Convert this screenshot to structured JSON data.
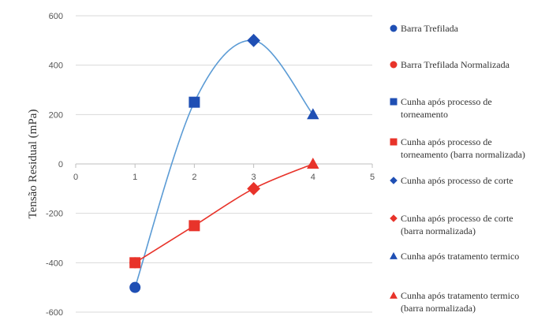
{
  "chart_data": {
    "type": "scatter",
    "title": "",
    "xlabel": "",
    "ylabel": "Tensão Residual (mPa)",
    "xlim": [
      0,
      5
    ],
    "ylim": [
      -600,
      600
    ],
    "x_ticks": [
      "0",
      "1",
      "2",
      "3",
      "4",
      "5"
    ],
    "y_ticks": [
      "-600",
      "-400",
      "-200",
      "0",
      "200",
      "400",
      "600"
    ],
    "grid": "horizontal",
    "legend_position": "right",
    "series": [
      {
        "name": "Barra Trefilada",
        "marker": "circle",
        "color": "#1f4fb4",
        "x": [
          1
        ],
        "y": [
          -500
        ]
      },
      {
        "name": "Barra Trefilada Normalizada",
        "marker": "circle",
        "color": "#e8332a",
        "x": [
          1
        ],
        "y": [
          -400
        ]
      },
      {
        "name": "Cunha após processo de torneamento",
        "marker": "square",
        "color": "#1f4fb4",
        "x": [
          2
        ],
        "y": [
          250
        ]
      },
      {
        "name": "Cunha após processo de torneamento (barra normalizada)",
        "marker": "square",
        "color": "#e8332a",
        "x": [
          1,
          2
        ],
        "y": [
          -400,
          -250
        ]
      },
      {
        "name": "Cunha após processo de corte",
        "marker": "diamond",
        "color": "#1f4fb4",
        "x": [
          3
        ],
        "y": [
          500
        ]
      },
      {
        "name": "Cunha após processo de corte (barra normalizada)",
        "marker": "diamond",
        "color": "#e8332a",
        "x": [
          3
        ],
        "y": [
          -100
        ]
      },
      {
        "name": "Cunha após tratamento termico",
        "marker": "triangle",
        "color": "#1f4fb4",
        "x": [
          4
        ],
        "y": [
          200
        ]
      },
      {
        "name": "Cunha após tratamento termico (barra normalizada)",
        "marker": "triangle",
        "color": "#e8332a",
        "x": [
          4
        ],
        "y": [
          0
        ]
      }
    ],
    "trend_lines": [
      {
        "color": "#5b9bd5",
        "x": [
          1,
          2,
          3,
          4
        ],
        "y": [
          -500,
          250,
          500,
          200
        ]
      },
      {
        "color": "#e8332a",
        "x": [
          1,
          2,
          3,
          4
        ],
        "y": [
          -400,
          -250,
          -100,
          0
        ]
      }
    ]
  },
  "legend": {
    "items": [
      {
        "lines": [
          "Barra Trefilada"
        ],
        "marker": "circle",
        "color": "#1f4fb4"
      },
      {
        "lines": [
          "Barra Trefilada Normalizada"
        ],
        "marker": "circle",
        "color": "#e8332a"
      },
      {
        "lines": [
          "Cunha após processo de",
          "torneamento"
        ],
        "marker": "square",
        "color": "#1f4fb4"
      },
      {
        "lines": [
          "Cunha após processo de",
          "torneamento (barra normalizada)"
        ],
        "marker": "square",
        "color": "#e8332a"
      },
      {
        "lines": [
          "Cunha após processo de corte"
        ],
        "marker": "diamond",
        "color": "#1f4fb4"
      },
      {
        "lines": [
          "Cunha após processo de corte",
          "(barra normalizada)"
        ],
        "marker": "diamond",
        "color": "#e8332a"
      },
      {
        "lines": [
          "Cunha após tratamento termico"
        ],
        "marker": "triangle",
        "color": "#1f4fb4"
      },
      {
        "lines": [
          "Cunha após tratamento termico",
          "(barra normalizada)"
        ],
        "marker": "triangle",
        "color": "#e8332a"
      }
    ]
  }
}
